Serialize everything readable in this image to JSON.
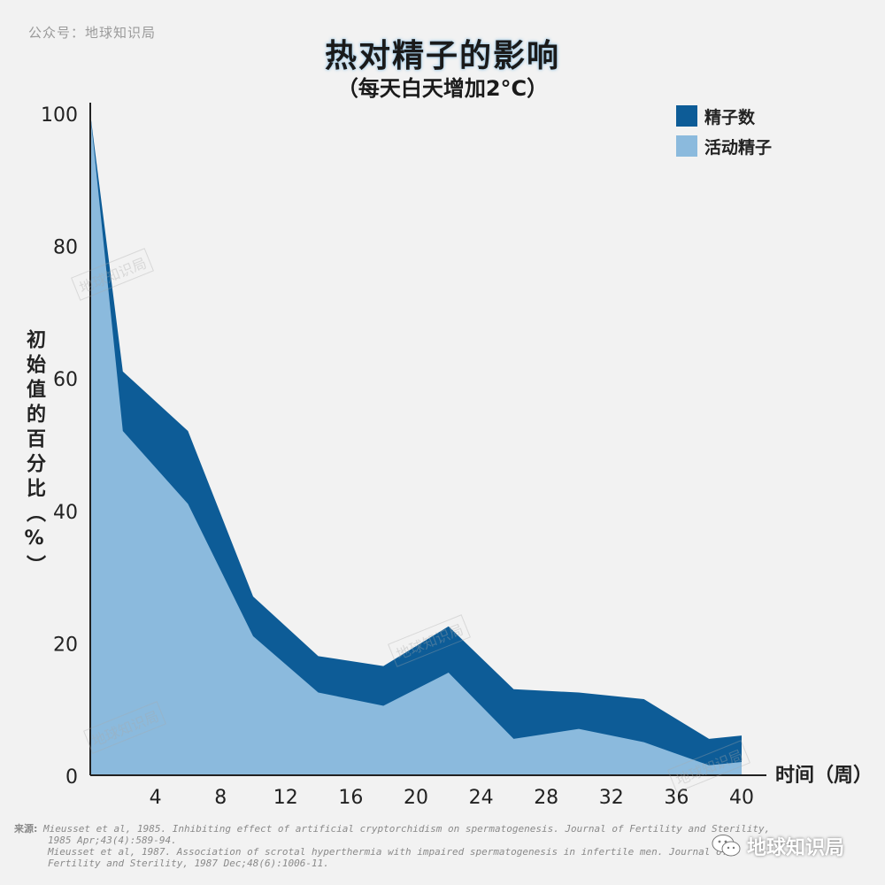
{
  "header": {
    "source_tag": "公众号：地球知识局",
    "title": "热对精子的影响",
    "subtitle": "（每天白天增加2°C）"
  },
  "watermark_text": "地球知识局",
  "references": {
    "label": "来源:",
    "lines": [
      "Mieusset et al, 1985. Inhibiting effect of artificial cryptorchidism on spermatogenesis. Journal of Fertility and Sterility,",
      "1985 Apr;43(4):589-94.",
      "Mieusset et al, 1987. Association of scrotal hyperthermia with impaired spermatogenesis in infertile men. Journal of",
      "Fertility and Sterility, 1987 Dec;48(6):1006-11."
    ]
  },
  "account": {
    "name": "地球知识局",
    "icon": "wechat-icon"
  },
  "colors": {
    "sperm_count": "#0d5c97",
    "motile_sperm": "#8bbadd",
    "background": "#f2f2f2"
  },
  "chart_data": {
    "type": "area",
    "title": "热对精子的影响",
    "subtitle": "（每天白天增加2°C）",
    "xlabel": "时间（周）",
    "ylabel": "初始值的百分比（%）",
    "xlim": [
      0,
      40
    ],
    "ylim": [
      0,
      100
    ],
    "xticks": [
      4,
      8,
      12,
      16,
      20,
      24,
      28,
      32,
      36,
      40
    ],
    "yticks": [
      0,
      20,
      40,
      60,
      80,
      100
    ],
    "grid": false,
    "legend": "top-right",
    "series": [
      {
        "name": "精子数",
        "color": "#0d5c97",
        "x": [
          0,
          2,
          6,
          10,
          14,
          18,
          22,
          26,
          30,
          34,
          38,
          40
        ],
        "values": [
          100,
          61,
          52,
          27,
          18,
          16.5,
          22.5,
          13,
          12.5,
          11.5,
          5.5,
          6
        ]
      },
      {
        "name": "活动精子",
        "color": "#8bbadd",
        "x": [
          0,
          2,
          6,
          10,
          14,
          18,
          22,
          26,
          30,
          34,
          38,
          40
        ],
        "values": [
          100,
          52,
          41,
          21,
          12.5,
          10.5,
          15.5,
          5.5,
          7,
          5,
          1.5,
          2
        ]
      }
    ]
  }
}
